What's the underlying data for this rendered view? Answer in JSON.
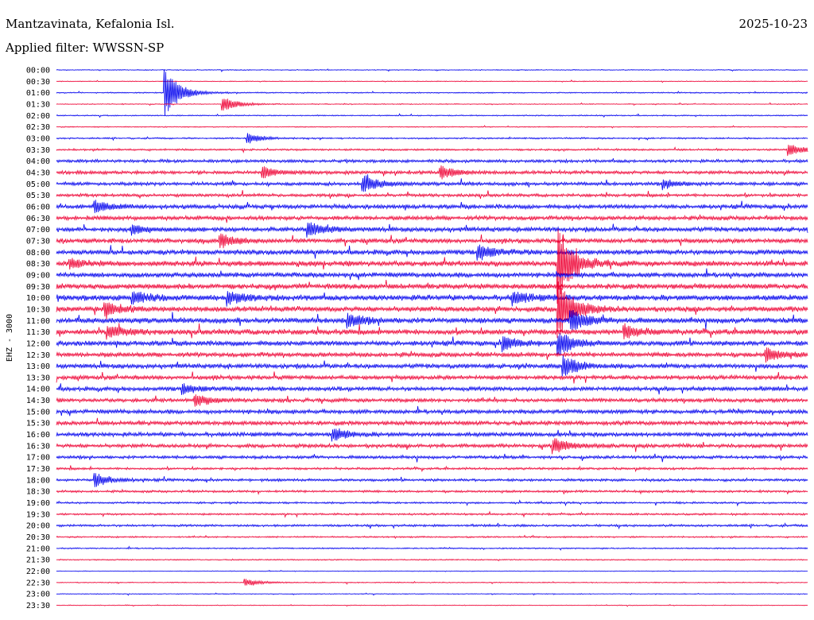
{
  "header": {
    "station": "Mantzavinata, Kefalonia Isl.",
    "date": "2025-10-23",
    "filter": "Applied filter: WWSSN-SP"
  },
  "chart_data": {
    "type": "helicorder",
    "channel_label": "EHZ - 3000",
    "row_labels": [
      "00:00",
      "00:30",
      "01:00",
      "01:30",
      "02:00",
      "02:30",
      "03:00",
      "03:30",
      "04:00",
      "04:30",
      "05:00",
      "05:30",
      "06:00",
      "06:30",
      "07:00",
      "07:30",
      "08:00",
      "08:30",
      "09:00",
      "09:30",
      "10:00",
      "10:30",
      "11:00",
      "11:30",
      "12:00",
      "12:30",
      "13:00",
      "13:30",
      "14:00",
      "14:30",
      "15:00",
      "15:30",
      "16:00",
      "16:30",
      "17:00",
      "17:30",
      "18:00",
      "18:30",
      "19:00",
      "19:30",
      "20:00",
      "20:30",
      "21:00",
      "21:30",
      "22:00",
      "22:30",
      "23:00",
      "23:30"
    ],
    "trace_colors": [
      "#0000ee",
      "#ee0033"
    ],
    "noise_levels": [
      0.5,
      0.4,
      0.6,
      0.5,
      0.6,
      0.5,
      0.8,
      1.0,
      1.6,
      1.8,
      1.8,
      1.6,
      2.2,
      2.2,
      2.4,
      2.4,
      2.6,
      2.8,
      2.6,
      2.8,
      3.0,
      2.8,
      2.8,
      2.8,
      2.6,
      2.4,
      2.4,
      2.2,
      2.2,
      2.0,
      2.2,
      2.2,
      2.2,
      2.0,
      1.6,
      1.2,
      1.4,
      1.2,
      1.0,
      1.0,
      1.2,
      0.8,
      0.7,
      0.6,
      0.4,
      0.5,
      0.4,
      0.4
    ],
    "events": [
      {
        "row": 2,
        "minute": 4.3,
        "amplitude": 32
      },
      {
        "row": 3,
        "minute": 6.6,
        "amplitude": 10
      },
      {
        "row": 6,
        "minute": 7.6,
        "amplitude": 7
      },
      {
        "row": 7,
        "minute": 29.2,
        "amplitude": 8
      },
      {
        "row": 9,
        "minute": 8.2,
        "amplitude": 8
      },
      {
        "row": 9,
        "minute": 15.3,
        "amplitude": 9
      },
      {
        "row": 10,
        "minute": 12.2,
        "amplitude": 12
      },
      {
        "row": 10,
        "minute": 24.2,
        "amplitude": 6
      },
      {
        "row": 12,
        "minute": 1.5,
        "amplitude": 8
      },
      {
        "row": 14,
        "minute": 10.0,
        "amplitude": 10
      },
      {
        "row": 14,
        "minute": 3.0,
        "amplitude": 6
      },
      {
        "row": 15,
        "minute": 6.5,
        "amplitude": 9
      },
      {
        "row": 16,
        "minute": 16.8,
        "amplitude": 10
      },
      {
        "row": 17,
        "minute": 0.5,
        "amplitude": 6
      },
      {
        "row": 17,
        "minute": 20.0,
        "amplitude": 50
      },
      {
        "row": 20,
        "minute": 3.0,
        "amplitude": 8
      },
      {
        "row": 20,
        "minute": 6.8,
        "amplitude": 9
      },
      {
        "row": 20,
        "minute": 18.2,
        "amplitude": 8
      },
      {
        "row": 21,
        "minute": 1.9,
        "amplitude": 9
      },
      {
        "row": 21,
        "minute": 20.0,
        "amplitude": 40
      },
      {
        "row": 22,
        "minute": 11.6,
        "amplitude": 9
      },
      {
        "row": 22,
        "minute": 20.5,
        "amplitude": 16
      },
      {
        "row": 23,
        "minute": 2.0,
        "amplitude": 9
      },
      {
        "row": 23,
        "minute": 22.6,
        "amplitude": 9
      },
      {
        "row": 24,
        "minute": 17.8,
        "amplitude": 9
      },
      {
        "row": 24,
        "minute": 20.0,
        "amplitude": 16
      },
      {
        "row": 25,
        "minute": 28.3,
        "amplitude": 9
      },
      {
        "row": 26,
        "minute": 20.2,
        "amplitude": 14
      },
      {
        "row": 28,
        "minute": 5.0,
        "amplitude": 6
      },
      {
        "row": 29,
        "minute": 5.5,
        "amplitude": 8
      },
      {
        "row": 32,
        "minute": 11.0,
        "amplitude": 9
      },
      {
        "row": 33,
        "minute": 19.8,
        "amplitude": 10
      },
      {
        "row": 36,
        "minute": 1.5,
        "amplitude": 10
      },
      {
        "row": 45,
        "minute": 7.5,
        "amplitude": 5
      }
    ]
  }
}
